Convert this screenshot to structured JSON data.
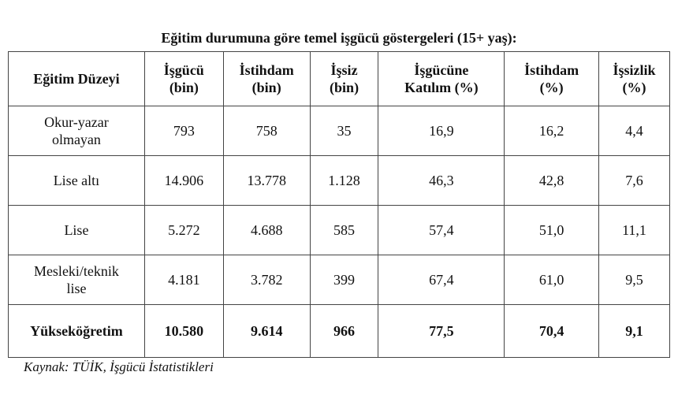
{
  "title": "Eğitim durumuna göre temel işgücü göstergeleri (15+ yaş):",
  "table": {
    "headers": [
      [
        "Eğitim Düzeyi"
      ],
      [
        "İşgücü",
        "(bin)"
      ],
      [
        "İstihdam",
        "(bin)"
      ],
      [
        "İşsiz",
        "(bin)"
      ],
      [
        "İşgücüne",
        "Katılım (%)"
      ],
      [
        "İstihdam",
        "(%)"
      ],
      [
        "İşsizlik",
        "(%)"
      ]
    ],
    "rows": [
      [
        "Okur-yazar olmayan",
        "793",
        "758",
        "35",
        "16,9",
        "16,2",
        "4,4"
      ],
      [
        "Lise altı",
        "14.906",
        "13.778",
        "1.128",
        "46,3",
        "42,8",
        "7,6"
      ],
      [
        "Lise",
        "5.272",
        "4.688",
        "585",
        "57,4",
        "51,0",
        "11,1"
      ],
      [
        "Mesleki/teknik lise",
        "4.181",
        "3.782",
        "399",
        "67,4",
        "61,0",
        "9,5"
      ],
      [
        "Yükseköğretim",
        "10.580",
        "9.614",
        "966",
        "77,5",
        "70,4",
        "9,1"
      ]
    ]
  },
  "source": "Kaynak: TÜİK, İşgücü İstatistikleri"
}
